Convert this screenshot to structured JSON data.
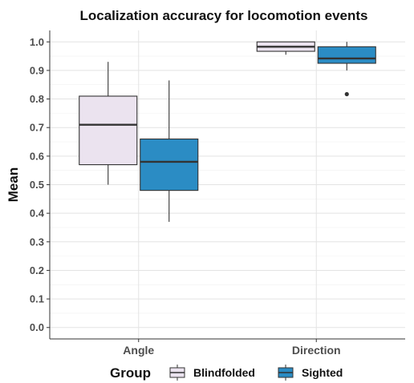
{
  "chart_data": {
    "type": "boxplot",
    "title": "Localization accuracy for locomotion events",
    "ylabel": "Mean",
    "xlabel": "",
    "categories": [
      "Angle",
      "Direction"
    ],
    "ylim": [
      -0.04,
      1.04
    ],
    "yticks": [
      "0.0",
      "0.1",
      "0.2",
      "0.3",
      "0.4",
      "0.5",
      "0.6",
      "0.7",
      "0.8",
      "0.9",
      "1.0"
    ],
    "grid": true,
    "legend": {
      "title": "Group",
      "position": "bottom"
    },
    "series": [
      {
        "name": "Blindfolded",
        "color": "#ebe3ef",
        "boxes": [
          {
            "category": "Angle",
            "min": 0.5,
            "q1": 0.57,
            "median": 0.71,
            "q3": 0.81,
            "max": 0.93,
            "outliers": []
          },
          {
            "category": "Direction",
            "min": 0.955,
            "q1": 0.967,
            "median": 0.983,
            "q3": 1.0,
            "max": 1.0,
            "outliers": []
          }
        ]
      },
      {
        "name": "Sighted",
        "color": "#2b8cc4",
        "boxes": [
          {
            "category": "Angle",
            "min": 0.37,
            "q1": 0.48,
            "median": 0.58,
            "q3": 0.66,
            "max": 0.865,
            "outliers": []
          },
          {
            "category": "Direction",
            "min": 0.9,
            "q1": 0.925,
            "median": 0.942,
            "q3": 0.983,
            "max": 1.0,
            "outliers": [
              0.817
            ]
          }
        ]
      }
    ]
  }
}
